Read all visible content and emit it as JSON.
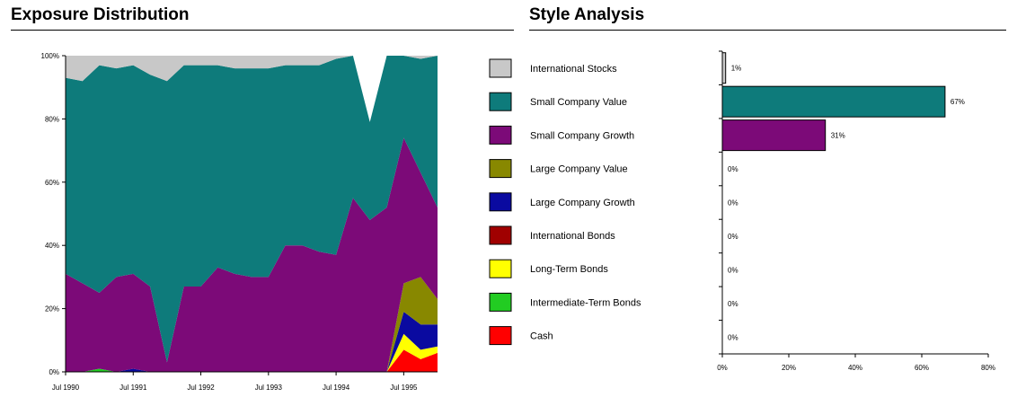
{
  "exposure_title": "Exposure Distribution",
  "style_title": "Style Analysis",
  "colors": {
    "International Stocks": "#c8c8c8",
    "Small Company Value": "#0e7b7b",
    "Small Company Growth": "#7c0a78",
    "Large Company Value": "#888800",
    "Large Company Growth": "#0a0aa0",
    "International Bonds": "#a00000",
    "Long-Term Bonds": "#ffff00",
    "Intermediate-Term Bonds": "#22cc22",
    "Cash": "#ff0000"
  },
  "chart_data": [
    {
      "type": "area",
      "title": "Exposure Distribution",
      "stacked": true,
      "x_ticks": [
        "Jul 1990",
        "Jul 1991",
        "Jul 1992",
        "Jul 1993",
        "Jul 1994",
        "Jul 1995"
      ],
      "y_ticks": [
        "0%",
        "20%",
        "40%",
        "60%",
        "80%",
        "100%"
      ],
      "ylim": [
        0,
        100
      ],
      "x": [
        1990.0,
        1990.25,
        1990.5,
        1990.75,
        1991.0,
        1991.25,
        1991.5,
        1991.75,
        1992.0,
        1992.25,
        1992.5,
        1992.75,
        1993.0,
        1993.25,
        1993.5,
        1993.75,
        1994.0,
        1994.25,
        1994.5,
        1994.75,
        1995.0,
        1995.25,
        1995.5
      ],
      "series": [
        {
          "name": "Cash",
          "values": [
            0,
            0,
            0,
            0,
            0,
            0,
            0,
            0,
            0,
            0,
            0,
            0,
            0,
            0,
            0,
            0,
            0,
            0,
            0,
            0,
            7,
            4,
            6
          ]
        },
        {
          "name": "Intermediate-Term Bonds",
          "values": [
            0,
            0,
            1,
            0,
            0,
            0,
            0,
            0,
            0,
            0,
            0,
            0,
            0,
            0,
            0,
            0,
            0,
            0,
            0,
            0,
            0,
            0,
            0
          ]
        },
        {
          "name": "Long-Term Bonds",
          "values": [
            0,
            0,
            0,
            0,
            0,
            0,
            0,
            0,
            0,
            0,
            0,
            0,
            0,
            0,
            0,
            0,
            0,
            0,
            0,
            0,
            5,
            3,
            2
          ]
        },
        {
          "name": "International Bonds",
          "values": [
            0,
            0,
            0,
            0,
            0,
            0,
            0,
            0,
            0,
            0,
            0,
            0,
            0,
            0,
            0,
            0,
            0,
            0,
            0,
            0,
            0,
            0,
            0
          ]
        },
        {
          "name": "Large Company Growth",
          "values": [
            0,
            0,
            0,
            0,
            1,
            0,
            0,
            0,
            0,
            0,
            0,
            0,
            0,
            0,
            0,
            0,
            0,
            0,
            0,
            0,
            7,
            8,
            7
          ]
        },
        {
          "name": "Large Company Value",
          "values": [
            0,
            0,
            0,
            0,
            0,
            0,
            0,
            0,
            0,
            0,
            0,
            0,
            0,
            0,
            0,
            0,
            0,
            0,
            0,
            0,
            9,
            15,
            8
          ]
        },
        {
          "name": "Small Company Growth",
          "values": [
            31,
            28,
            24,
            30,
            30,
            27,
            3,
            27,
            27,
            33,
            31,
            30,
            30,
            40,
            40,
            38,
            37,
            55,
            48,
            52,
            46,
            33,
            29
          ]
        },
        {
          "name": "Small Company Value",
          "values": [
            62,
            64,
            72,
            66,
            66,
            67,
            89,
            70,
            70,
            64,
            65,
            66,
            66,
            57,
            57,
            59,
            62,
            45,
            31,
            48,
            26,
            36,
            48
          ]
        },
        {
          "name": "International Stocks",
          "values": [
            7,
            8,
            3,
            4,
            3,
            6,
            8,
            3,
            3,
            3,
            4,
            4,
            4,
            3,
            3,
            3,
            1,
            0,
            0,
            0,
            0,
            1,
            0
          ]
        }
      ]
    },
    {
      "type": "bar",
      "orientation": "horizontal",
      "title": "Style Analysis",
      "categories": [
        "International Stocks",
        "Small Company Value",
        "Small Company Growth",
        "Large Company Value",
        "Large Company Growth",
        "International Bonds",
        "Long-Term Bonds",
        "Intermediate-Term Bonds",
        "Cash"
      ],
      "values": [
        1,
        67,
        31,
        0,
        0,
        0,
        0,
        0,
        0
      ],
      "value_labels": [
        "1%",
        "67%",
        "31%",
        "0%",
        "0%",
        "0%",
        "0%",
        "0%",
        "0%"
      ],
      "x_ticks": [
        "0%",
        "20%",
        "40%",
        "60%",
        "80%"
      ],
      "xlim": [
        0,
        80
      ]
    }
  ]
}
